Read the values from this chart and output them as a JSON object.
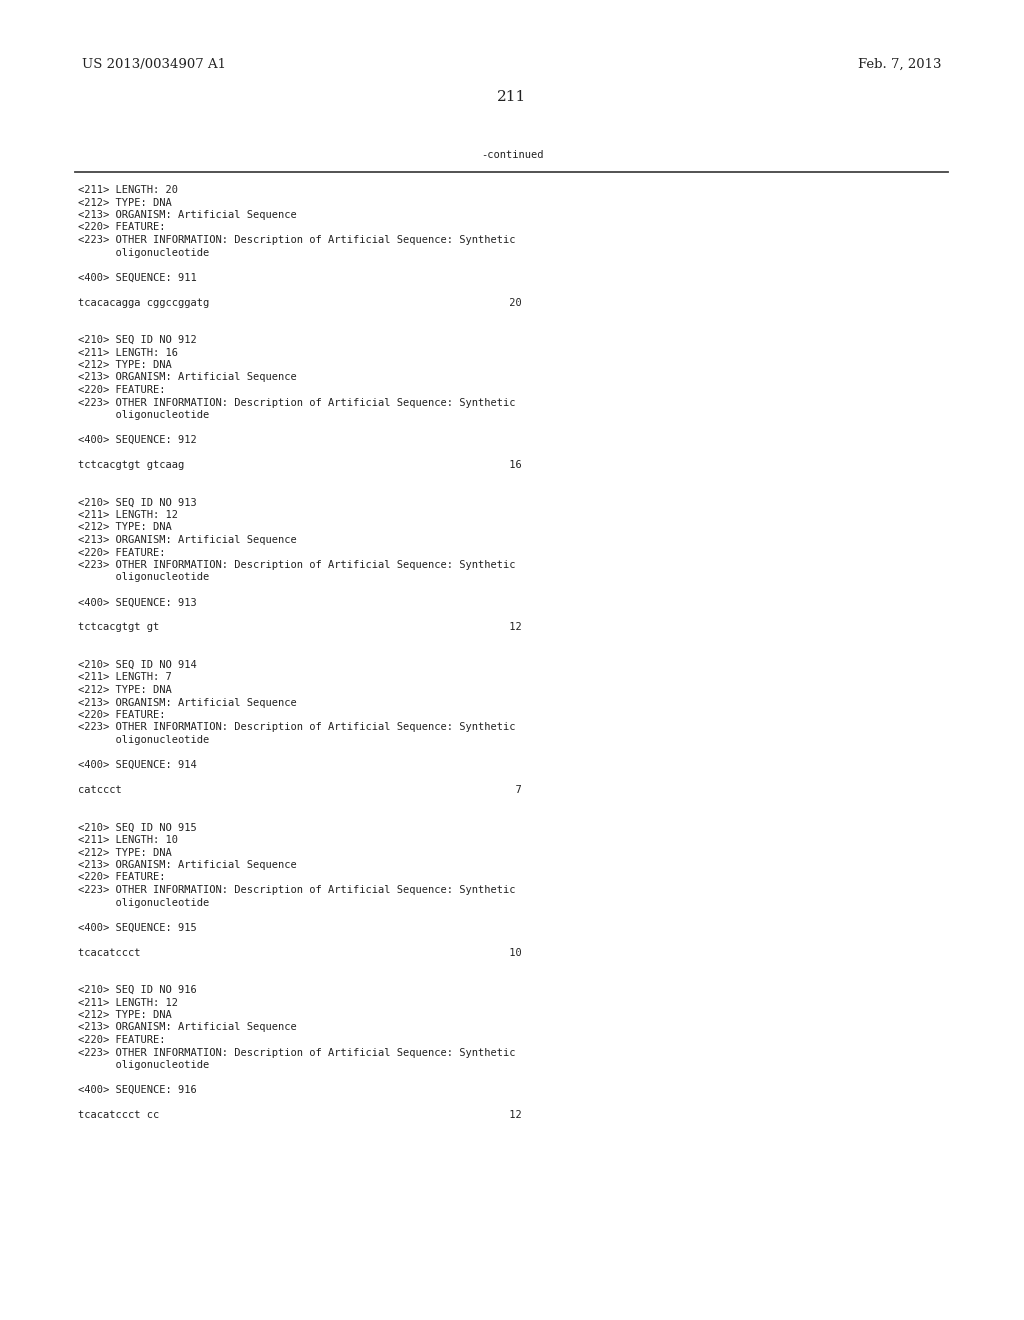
{
  "background_color": "#ffffff",
  "header_left": "US 2013/0034907 A1",
  "header_right": "Feb. 7, 2013",
  "page_number": "211",
  "continued_label": "-continued",
  "monospace_font_size": 7.5,
  "header_font_size": 9.5,
  "page_num_font_size": 11,
  "content": [
    "<211> LENGTH: 20",
    "<212> TYPE: DNA",
    "<213> ORGANISM: Artificial Sequence",
    "<220> FEATURE:",
    "<223> OTHER INFORMATION: Description of Artificial Sequence: Synthetic",
    "      oligonucleotide",
    "",
    "<400> SEQUENCE: 911",
    "",
    "tcacacagga cggccggatg                                                20",
    "",
    "",
    "<210> SEQ ID NO 912",
    "<211> LENGTH: 16",
    "<212> TYPE: DNA",
    "<213> ORGANISM: Artificial Sequence",
    "<220> FEATURE:",
    "<223> OTHER INFORMATION: Description of Artificial Sequence: Synthetic",
    "      oligonucleotide",
    "",
    "<400> SEQUENCE: 912",
    "",
    "tctcacgtgt gtcaag                                                    16",
    "",
    "",
    "<210> SEQ ID NO 913",
    "<211> LENGTH: 12",
    "<212> TYPE: DNA",
    "<213> ORGANISM: Artificial Sequence",
    "<220> FEATURE:",
    "<223> OTHER INFORMATION: Description of Artificial Sequence: Synthetic",
    "      oligonucleotide",
    "",
    "<400> SEQUENCE: 913",
    "",
    "tctcacgtgt gt                                                        12",
    "",
    "",
    "<210> SEQ ID NO 914",
    "<211> LENGTH: 7",
    "<212> TYPE: DNA",
    "<213> ORGANISM: Artificial Sequence",
    "<220> FEATURE:",
    "<223> OTHER INFORMATION: Description of Artificial Sequence: Synthetic",
    "      oligonucleotide",
    "",
    "<400> SEQUENCE: 914",
    "",
    "catccct                                                               7",
    "",
    "",
    "<210> SEQ ID NO 915",
    "<211> LENGTH: 10",
    "<212> TYPE: DNA",
    "<213> ORGANISM: Artificial Sequence",
    "<220> FEATURE:",
    "<223> OTHER INFORMATION: Description of Artificial Sequence: Synthetic",
    "      oligonucleotide",
    "",
    "<400> SEQUENCE: 915",
    "",
    "tcacatccct                                                           10",
    "",
    "",
    "<210> SEQ ID NO 916",
    "<211> LENGTH: 12",
    "<212> TYPE: DNA",
    "<213> ORGANISM: Artificial Sequence",
    "<220> FEATURE:",
    "<223> OTHER INFORMATION: Description of Artificial Sequence: Synthetic",
    "      oligonucleotide",
    "",
    "<400> SEQUENCE: 916",
    "",
    "tcacatccct cc                                                        12"
  ]
}
